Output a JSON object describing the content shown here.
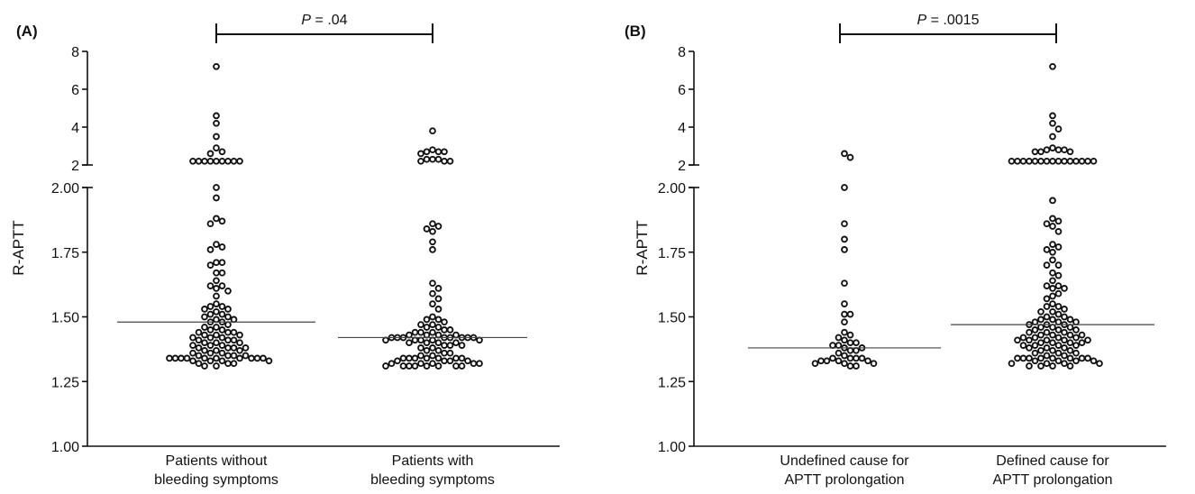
{
  "chart_data": [
    {
      "type": "scatter",
      "panel_label": "(A)",
      "ylabel": "R-APTT",
      "y_axis": {
        "lower_segment": {
          "ylim": [
            1.0,
            2.0
          ],
          "ticks": [
            "1.00",
            "1.25",
            "1.50",
            "1.75",
            "2.00"
          ]
        },
        "upper_segment": {
          "ylim": [
            2,
            8
          ],
          "ticks": [
            "2",
            "4",
            "6",
            "8"
          ]
        },
        "broken": true
      },
      "significance": {
        "p_label": "P",
        "p_value": "= .04"
      },
      "categories": [
        {
          "label_lines": [
            "Patients without",
            "bleeding symptoms"
          ]
        },
        {
          "label_lines": [
            "Patients with",
            "bleeding symptoms"
          ]
        }
      ],
      "medians": [
        1.48,
        1.42
      ],
      "series": [
        {
          "values": [
            7.2,
            4.6,
            4.2,
            3.5,
            2.9,
            2.7,
            2.6,
            2.2,
            2.2,
            2.2,
            2.2,
            2.2,
            2.2,
            2.2,
            2.2,
            2.2,
            2.0,
            1.96,
            1.88,
            1.87,
            1.86,
            1.78,
            1.77,
            1.76,
            1.71,
            1.71,
            1.7,
            1.67,
            1.67,
            1.64,
            1.62,
            1.62,
            1.61,
            1.6,
            1.58,
            1.55,
            1.54,
            1.54,
            1.53,
            1.53,
            1.52,
            1.51,
            1.51,
            1.5,
            1.5,
            1.49,
            1.49,
            1.48,
            1.48,
            1.47,
            1.46,
            1.46,
            1.45,
            1.45,
            1.44,
            1.44,
            1.44,
            1.43,
            1.43,
            1.43,
            1.42,
            1.42,
            1.42,
            1.41,
            1.41,
            1.41,
            1.4,
            1.4,
            1.4,
            1.39,
            1.39,
            1.39,
            1.38,
            1.38,
            1.38,
            1.38,
            1.37,
            1.37,
            1.37,
            1.36,
            1.36,
            1.36,
            1.35,
            1.35,
            1.35,
            1.35,
            1.34,
            1.34,
            1.34,
            1.34,
            1.34,
            1.34,
            1.34,
            1.34,
            1.34,
            1.34,
            1.33,
            1.33,
            1.33,
            1.33,
            1.32,
            1.32,
            1.32,
            1.31,
            1.31
          ]
        },
        {
          "values": [
            3.8,
            2.8,
            2.7,
            2.7,
            2.7,
            2.6,
            2.3,
            2.3,
            2.3,
            2.2,
            2.2,
            2.2,
            1.86,
            1.85,
            1.84,
            1.83,
            1.79,
            1.76,
            1.63,
            1.61,
            1.59,
            1.57,
            1.55,
            1.53,
            1.5,
            1.49,
            1.49,
            1.48,
            1.47,
            1.47,
            1.46,
            1.46,
            1.45,
            1.45,
            1.44,
            1.44,
            1.44,
            1.43,
            1.43,
            1.43,
            1.43,
            1.42,
            1.42,
            1.42,
            1.42,
            1.42,
            1.42,
            1.42,
            1.42,
            1.41,
            1.41,
            1.41,
            1.41,
            1.41,
            1.4,
            1.4,
            1.4,
            1.4,
            1.39,
            1.39,
            1.39,
            1.38,
            1.38,
            1.37,
            1.37,
            1.36,
            1.36,
            1.35,
            1.35,
            1.34,
            1.34,
            1.34,
            1.34,
            1.34,
            1.34,
            1.34,
            1.33,
            1.33,
            1.33,
            1.33,
            1.32,
            1.32,
            1.32,
            1.32,
            1.32,
            1.31,
            1.31,
            1.31,
            1.31,
            1.31,
            1.31,
            1.31,
            1.31
          ]
        }
      ]
    },
    {
      "type": "scatter",
      "panel_label": "(B)",
      "ylabel": "R-APTT",
      "y_axis": {
        "lower_segment": {
          "ylim": [
            1.0,
            2.0
          ],
          "ticks": [
            "1.00",
            "1.25",
            "1.50",
            "1.75",
            "2.00"
          ]
        },
        "upper_segment": {
          "ylim": [
            2,
            8
          ],
          "ticks": [
            "2",
            "4",
            "6",
            "8"
          ]
        },
        "broken": true
      },
      "significance": {
        "p_label": "P",
        "p_value": "= .0015"
      },
      "categories": [
        {
          "label_lines": [
            "Undefined cause for",
            "APTT prolongation"
          ]
        },
        {
          "label_lines": [
            "Defined cause for",
            "APTT prolongation"
          ]
        }
      ],
      "medians": [
        1.38,
        1.47
      ],
      "series": [
        {
          "values": [
            2.6,
            2.4,
            2.0,
            1.86,
            1.8,
            1.76,
            1.63,
            1.55,
            1.51,
            1.51,
            1.48,
            1.44,
            1.43,
            1.42,
            1.41,
            1.4,
            1.4,
            1.39,
            1.39,
            1.38,
            1.38,
            1.37,
            1.37,
            1.36,
            1.35,
            1.34,
            1.34,
            1.34,
            1.34,
            1.33,
            1.33,
            1.33,
            1.33,
            1.32,
            1.32,
            1.32,
            1.31,
            1.31
          ]
        },
        {
          "values": [
            7.2,
            4.6,
            4.2,
            3.9,
            3.5,
            2.9,
            2.8,
            2.8,
            2.8,
            2.7,
            2.7,
            2.7,
            2.2,
            2.2,
            2.2,
            2.2,
            2.2,
            2.2,
            2.2,
            2.2,
            2.2,
            2.2,
            2.2,
            2.2,
            2.2,
            2.2,
            2.2,
            1.95,
            1.88,
            1.87,
            1.86,
            1.85,
            1.83,
            1.78,
            1.77,
            1.76,
            1.75,
            1.72,
            1.7,
            1.7,
            1.67,
            1.66,
            1.64,
            1.62,
            1.62,
            1.61,
            1.61,
            1.59,
            1.58,
            1.57,
            1.55,
            1.54,
            1.54,
            1.53,
            1.52,
            1.52,
            1.51,
            1.5,
            1.5,
            1.49,
            1.49,
            1.49,
            1.48,
            1.48,
            1.48,
            1.47,
            1.47,
            1.47,
            1.46,
            1.46,
            1.46,
            1.45,
            1.45,
            1.45,
            1.44,
            1.44,
            1.44,
            1.43,
            1.43,
            1.43,
            1.43,
            1.42,
            1.42,
            1.42,
            1.42,
            1.41,
            1.41,
            1.41,
            1.41,
            1.41,
            1.4,
            1.4,
            1.4,
            1.4,
            1.39,
            1.39,
            1.39,
            1.39,
            1.38,
            1.38,
            1.38,
            1.37,
            1.37,
            1.37,
            1.36,
            1.36,
            1.36,
            1.35,
            1.35,
            1.34,
            1.34,
            1.34,
            1.34,
            1.34,
            1.34,
            1.34,
            1.34,
            1.33,
            1.33,
            1.33,
            1.33,
            1.32,
            1.32,
            1.32,
            1.32,
            1.31,
            1.31,
            1.31,
            1.31
          ]
        }
      ]
    }
  ]
}
